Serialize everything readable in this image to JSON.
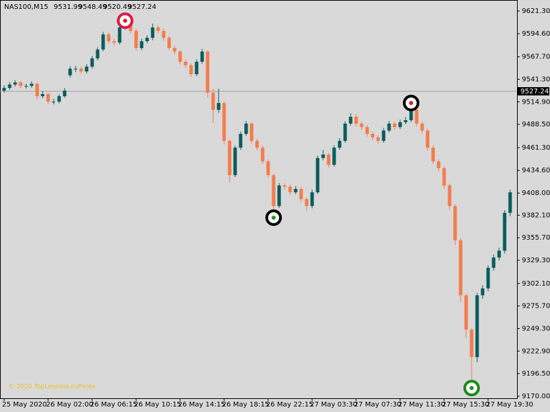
{
  "chart_data": {
    "type": "candlestick",
    "symbol": "NAS100,M15",
    "header_values": [
      9531.99,
      9548.49,
      9520.49,
      9527.24
    ],
    "watermark": "© 2020 TopLessons.in/Forex",
    "up_color": "#0b5c5c",
    "down_color": "#f47c4c",
    "ylim": [
      9167.6,
      9634.2
    ],
    "yticks": [
      {
        "value": 9621.3,
        "label": "9621.30"
      },
      {
        "value": 9594.6,
        "label": "9594.60"
      },
      {
        "value": 9567.7,
        "label": "9567.70"
      },
      {
        "value": 9541.3,
        "label": "9541.30"
      },
      {
        "value": 9514.9,
        "label": "9514.90"
      },
      {
        "value": 9488.5,
        "label": "9488.50"
      },
      {
        "value": 9461.3,
        "label": "9461.30"
      },
      {
        "value": 9434.6,
        "label": "9434.60"
      },
      {
        "value": 9408,
        "label": "9408.00"
      },
      {
        "value": 9382.1,
        "label": "9382.10"
      },
      {
        "value": 9355.7,
        "label": "9355.70"
      },
      {
        "value": 9329.3,
        "label": "9329.30"
      },
      {
        "value": 9302.1,
        "label": "9302.10"
      },
      {
        "value": 9275.7,
        "label": "9275.70"
      },
      {
        "value": 9249.3,
        "label": "9249.30"
      },
      {
        "value": 9222.9,
        "label": "9222.90"
      },
      {
        "value": 9196.5,
        "label": "9196.50"
      },
      {
        "value": 9170,
        "label": "9170.00"
      }
    ],
    "price_line": 9527.24,
    "categories": [
      "25 May 2020",
      null,
      null,
      null,
      null,
      null,
      null,
      null,
      "26 May 02:00",
      null,
      null,
      null,
      null,
      null,
      null,
      null,
      "26 May 06:15",
      null,
      null,
      null,
      null,
      null,
      null,
      null,
      "26 May 10:15",
      null,
      null,
      null,
      null,
      null,
      null,
      null,
      "26 May 14:15",
      null,
      null,
      null,
      null,
      null,
      null,
      null,
      "26 May 18:15",
      null,
      null,
      null,
      null,
      null,
      null,
      null,
      "26 May 22:15",
      null,
      null,
      null,
      null,
      null,
      null,
      null,
      "27 May 03:30",
      null,
      null,
      null,
      null,
      null,
      null,
      null,
      "27 May 07:30",
      null,
      null,
      null,
      null,
      null,
      null,
      null,
      "27 May 11:30",
      null,
      null,
      null,
      null,
      null,
      null,
      null,
      "27 May 15:30",
      null,
      null,
      null,
      null,
      null,
      null,
      null,
      "27 May 19:30",
      null,
      null,
      null,
      null
    ],
    "open": [
      9528.0,
      9531.2,
      9535.2,
      9537.6,
      9533.6,
      9533.6,
      9536.0,
      9521.5,
      9524.0,
      9515.1,
      9515.1,
      9521.5,
      9546.0,
      9553.7,
      9553.7,
      9550.5,
      9556.1,
      9565.8,
      9576.2,
      9593.9,
      9585.9,
      9584.3,
      9602.0,
      9610.0,
      9598.0,
      9577.9,
      9585.9,
      9589.9,
      9602.0,
      9598.0,
      9589.9,
      9577.9,
      9573.8,
      9561.8,
      9557.7,
      9547.3,
      9561.8,
      9573.8,
      9525.6,
      9505.5,
      9513.5,
      9469.2,
      9429.0,
      9461.2,
      9477.3,
      9489.4,
      9469.2,
      9461.2,
      9445.1,
      9429.0,
      9392.8,
      9416.9,
      9415.4,
      9408.9,
      9412.9,
      9400.9,
      9392.8,
      9408.9,
      9449.1,
      9453.2,
      9441.1,
      9461.2,
      9469.2,
      9489.4,
      9497.4,
      9489.4,
      9485.3,
      9477.3,
      9473.3,
      9469.2,
      9481.3,
      9489.4,
      9485.3,
      9491.0,
      9493.4,
      9505.5,
      9489.4,
      9481.3,
      9461.2,
      9445.1,
      9437.1,
      9416.9,
      9392.8,
      9352.6,
      9288.2,
      9248.0,
      9215.8,
      9288.2,
      9296.3,
      9320.4,
      9332.5,
      9340.5,
      9384.8
    ],
    "high": [
      9534.4,
      9538.0,
      9540.2,
      9539.5,
      9536.2,
      9538.8,
      9537.5,
      9527.3,
      9525.8,
      9518.6,
      9523.9,
      9531.0,
      9556.5,
      9557.0,
      9555.8,
      9559.0,
      9568.5,
      9579.0,
      9597.0,
      9596.0,
      9588.5,
      9605.0,
      9616.5,
      9612.4,
      9600.2,
      9588.8,
      9593.0,
      9606.5,
      9604.6,
      9600.5,
      9592.0,
      9580.4,
      9576.0,
      9564.2,
      9560.0,
      9564.6,
      9577.0,
      9575.5,
      9530.0,
      9530.0,
      9515.0,
      9471.0,
      9463.8,
      9480.0,
      9492.5,
      9491.2,
      9472.0,
      9463.5,
      9447.6,
      9431.0,
      9419.8,
      9419.5,
      9418.0,
      9416.0,
      9415.0,
      9403.2,
      9412.0,
      9452.0,
      9458.5,
      9455.0,
      9464.0,
      9472.5,
      9492.0,
      9501.5,
      9500.5,
      9492.0,
      9488.0,
      9480.0,
      9476.0,
      9484.4,
      9492.5,
      9492.0,
      9494.0,
      9497.0,
      9515.0,
      9508.0,
      9492.0,
      9483.5,
      9463.8,
      9447.5,
      9439.6,
      9419.0,
      9395.0,
      9355.0,
      9290.0,
      9250.0,
      9291.0,
      9300.0,
      9323.5,
      9336.0,
      9344.0,
      9388.0,
      9412.0
    ],
    "low": [
      9525.6,
      9529.0,
      9533.0,
      9531.0,
      9530.5,
      9531.4,
      9518.0,
      9519.2,
      9512.0,
      9511.8,
      9513.0,
      9519.6,
      9543.5,
      9549.8,
      9547.6,
      9548.0,
      9554.0,
      9563.5,
      9574.0,
      9583.2,
      9580.8,
      9582.0,
      9599.5,
      9595.0,
      9574.8,
      9575.5,
      9583.6,
      9587.0,
      9594.8,
      9586.5,
      9575.0,
      9570.6,
      9558.7,
      9554.6,
      9544.0,
      9545.0,
      9559.5,
      9520.0,
      9490.0,
      9502.0,
      9465.0,
      9420.0,
      9426.5,
      9458.6,
      9475.0,
      9466.0,
      9458.0,
      9442.0,
      9425.8,
      9385.0,
      9390.5,
      9412.0,
      9405.6,
      9406.5,
      9397.6,
      9387.0,
      9390.0,
      9406.8,
      9446.4,
      9437.8,
      9438.9,
      9458.8,
      9467.0,
      9487.0,
      9486.0,
      9482.0,
      9474.2,
      9470.0,
      9465.8,
      9467.0,
      9479.0,
      9482.0,
      9483.0,
      9488.6,
      9491.0,
      9486.0,
      9478.0,
      9458.0,
      9442.0,
      9433.8,
      9413.0,
      9388.5,
      9347.0,
      9280.0,
      9238.0,
      9177.2,
      9210.0,
      9284.0,
      9293.0,
      9317.0,
      9329.0,
      9337.0,
      9381.0
    ],
    "close": [
      9531.2,
      9535.2,
      9537.6,
      9533.6,
      9533.6,
      9536.0,
      9521.5,
      9524.0,
      9515.1,
      9515.1,
      9521.5,
      9528.0,
      9553.7,
      9553.7,
      9550.5,
      9556.1,
      9565.8,
      9576.2,
      9593.9,
      9585.9,
      9584.3,
      9602.0,
      9610.0,
      9598.0,
      9577.9,
      9585.9,
      9589.9,
      9602.0,
      9598.0,
      9589.9,
      9577.9,
      9573.8,
      9561.8,
      9557.7,
      9547.3,
      9561.8,
      9573.8,
      9525.6,
      9505.5,
      9513.5,
      9469.2,
      9429.0,
      9461.2,
      9477.3,
      9489.4,
      9469.2,
      9461.2,
      9445.1,
      9429.0,
      9392.8,
      9416.9,
      9415.4,
      9408.9,
      9412.9,
      9400.9,
      9392.8,
      9408.9,
      9449.1,
      9453.2,
      9441.1,
      9461.2,
      9469.2,
      9489.4,
      9497.4,
      9489.4,
      9485.3,
      9477.3,
      9473.3,
      9469.2,
      9481.3,
      9489.4,
      9485.3,
      9491.0,
      9493.4,
      9505.5,
      9489.4,
      9481.3,
      9461.2,
      9445.1,
      9437.1,
      9416.9,
      9392.8,
      9352.6,
      9288.2,
      9248.0,
      9215.8,
      9288.2,
      9296.3,
      9320.4,
      9332.5,
      9340.5,
      9384.8,
      9408.9
    ],
    "markers": [
      {
        "at": 22,
        "price": 9610.0,
        "ring": "#d81b4a",
        "dot": "#e02020"
      },
      {
        "at": 49,
        "price": 9379.2,
        "ring": "#000000",
        "dot": "#1a9a1a"
      },
      {
        "at": 74,
        "price": 9513.5,
        "ring": "#000000",
        "dot": "#e02020"
      },
      {
        "at": 85,
        "price": 9179.6,
        "ring": "#1a8a1a",
        "dot": "#1a9a1a"
      }
    ]
  }
}
